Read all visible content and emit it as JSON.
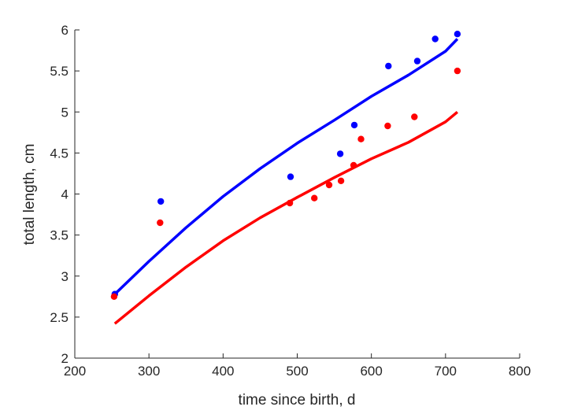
{
  "chart_data": {
    "type": "scatter",
    "title": "",
    "xlabel": "time since birth, d",
    "ylabel": "total length, cm",
    "xlim": [
      200,
      800
    ],
    "ylim": [
      2,
      6
    ],
    "xticks": [
      200,
      300,
      400,
      500,
      600,
      700,
      800
    ],
    "yticks": [
      2,
      2.5,
      3,
      3.5,
      4,
      4.5,
      5,
      5.5,
      6
    ],
    "xtick_labels": [
      "200",
      "300",
      "400",
      "500",
      "600",
      "700",
      "800"
    ],
    "ytick_labels": [
      "2",
      "2.5",
      "3",
      "3.5",
      "4",
      "4.5",
      "5",
      "5.5",
      "6"
    ],
    "grid": false,
    "series": [
      {
        "name": "blue data",
        "kind": "points",
        "color": "#0000ff",
        "x": [
          254,
          316,
          491,
          558,
          577,
          623,
          662,
          686,
          716
        ],
        "y": [
          2.78,
          3.91,
          4.21,
          4.49,
          4.84,
          5.56,
          5.62,
          5.89,
          5.95
        ]
      },
      {
        "name": "red data",
        "kind": "points",
        "color": "#ff0000",
        "x": [
          253,
          315,
          490,
          523,
          543,
          559,
          576,
          586,
          622,
          658,
          716
        ],
        "y": [
          2.75,
          3.65,
          3.89,
          3.95,
          4.11,
          4.16,
          4.35,
          4.67,
          4.83,
          4.94,
          5.5
        ]
      },
      {
        "name": "blue fit",
        "kind": "line",
        "color": "#0000ff",
        "x": [
          254,
          300,
          350,
          400,
          450,
          500,
          550,
          600,
          650,
          700,
          716
        ],
        "y": [
          2.78,
          3.18,
          3.59,
          3.97,
          4.31,
          4.62,
          4.9,
          5.19,
          5.45,
          5.74,
          5.89
        ]
      },
      {
        "name": "red fit",
        "kind": "line",
        "color": "#ff0000",
        "x": [
          254,
          300,
          350,
          400,
          450,
          500,
          550,
          600,
          650,
          700,
          716
        ],
        "y": [
          2.42,
          2.76,
          3.11,
          3.43,
          3.71,
          3.96,
          4.2,
          4.43,
          4.63,
          4.88,
          5.0
        ]
      }
    ]
  }
}
